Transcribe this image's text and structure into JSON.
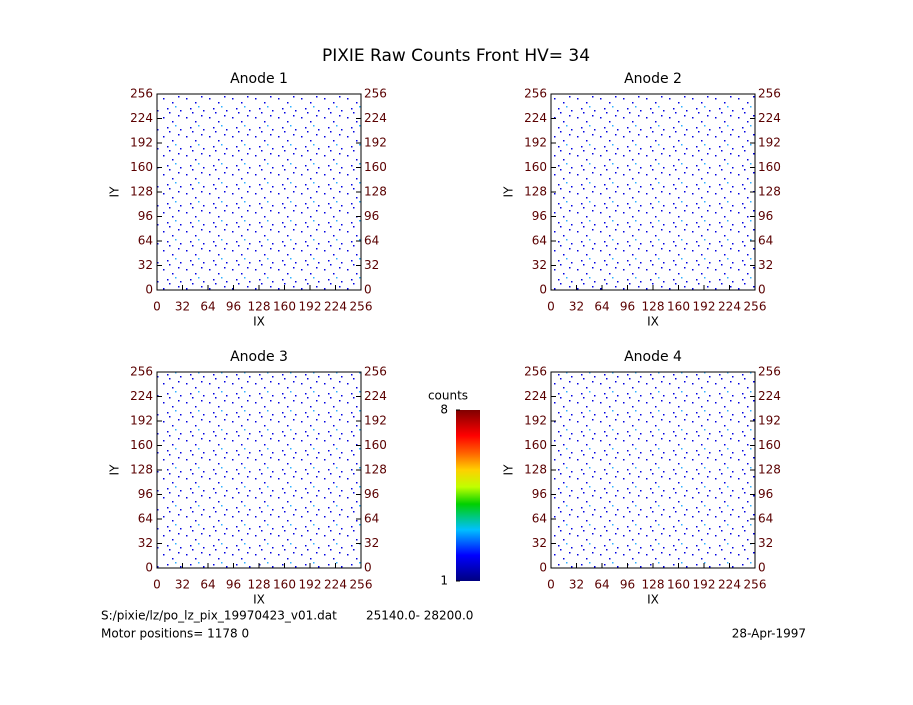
{
  "title": "PIXIE Raw Counts Front HV= 34",
  "chart_data": [
    {
      "type": "heatmap",
      "title": "Anode 1",
      "xlabel": "IX",
      "ylabel": "IY",
      "xlim": [
        0,
        256
      ],
      "ylim": [
        0,
        256
      ],
      "xticks": [
        0,
        32,
        64,
        96,
        128,
        160,
        192,
        224,
        256
      ],
      "yticks": [
        0,
        32,
        64,
        96,
        128,
        160,
        192,
        224,
        256
      ]
    },
    {
      "type": "heatmap",
      "title": "Anode 2",
      "xlabel": "IX",
      "ylabel": "IY",
      "xlim": [
        0,
        256
      ],
      "ylim": [
        0,
        256
      ],
      "xticks": [
        0,
        32,
        64,
        96,
        128,
        160,
        192,
        224,
        256
      ],
      "yticks": [
        0,
        32,
        64,
        96,
        128,
        160,
        192,
        224,
        256
      ]
    },
    {
      "type": "heatmap",
      "title": "Anode 3",
      "xlabel": "IX",
      "ylabel": "IY",
      "xlim": [
        0,
        256
      ],
      "ylim": [
        0,
        256
      ],
      "xticks": [
        0,
        32,
        64,
        96,
        128,
        160,
        192,
        224,
        256
      ],
      "yticks": [
        0,
        32,
        64,
        96,
        128,
        160,
        192,
        224,
        256
      ]
    },
    {
      "type": "heatmap",
      "title": "Anode 4",
      "xlabel": "IX",
      "ylabel": "IY",
      "xlim": [
        0,
        256
      ],
      "ylim": [
        0,
        256
      ],
      "xticks": [
        0,
        32,
        64,
        96,
        128,
        160,
        192,
        224,
        256
      ],
      "yticks": [
        0,
        32,
        64,
        96,
        128,
        160,
        192,
        224,
        256
      ]
    }
  ],
  "colorbar": {
    "label": "counts",
    "lim": [
      1,
      8
    ],
    "ticks": [
      1,
      8
    ]
  },
  "footer": {
    "file": "S:/pixie/lz/po_lz_pix_19970423_v01.dat",
    "range": "25140.0- 28200.0",
    "motor": "Motor positions= 1178 0",
    "date": "28-Apr-1997"
  }
}
